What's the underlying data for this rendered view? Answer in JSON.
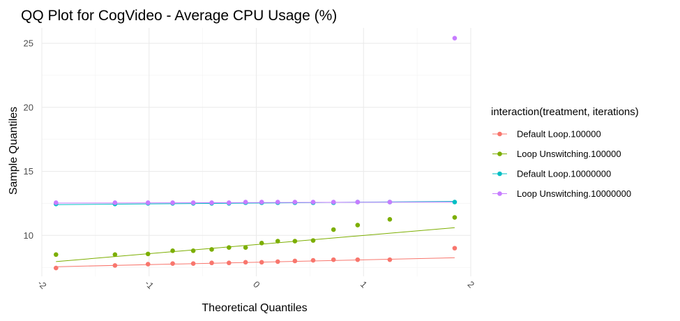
{
  "chart_data": {
    "type": "scatter",
    "title": "QQ Plot for CogVideo - Average CPU Usage (%)",
    "xlabel": "Theoretical Quantiles",
    "ylabel": "Sample Quantiles",
    "xlim": [
      -2.0,
      2.0
    ],
    "ylim": [
      6.8,
      26.2
    ],
    "x_ticks": [
      -2,
      -1,
      0,
      1,
      2
    ],
    "x_tick_labels": [
      "-2",
      "-1",
      "0",
      "1",
      "2"
    ],
    "y_ticks": [
      10,
      15,
      20,
      25
    ],
    "y_tick_labels": [
      "10",
      "15",
      "20",
      "25"
    ],
    "grid": true,
    "legend_position": "right",
    "legend_title": "interaction(treatment, iterations)",
    "series": [
      {
        "name": "Default Loop.100000",
        "color": "#F8766D",
        "x": [
          -1.868,
          -1.318,
          -1.01,
          -0.78,
          -0.588,
          -0.416,
          -0.255,
          -0.1,
          0.05,
          0.2,
          0.36,
          0.53,
          0.72,
          0.945,
          1.245,
          1.85
        ],
        "y": [
          7.45,
          7.65,
          7.75,
          7.8,
          7.8,
          7.85,
          7.85,
          7.9,
          7.9,
          7.95,
          8.0,
          8.05,
          8.1,
          8.1,
          8.1,
          9.0
        ],
        "line": [
          [
            -1.868,
            7.55
          ],
          [
            1.85,
            8.25
          ]
        ]
      },
      {
        "name": "Loop Unswitching.100000",
        "color": "#7CAE00",
        "x": [
          -1.868,
          -1.318,
          -1.01,
          -0.78,
          -0.588,
          -0.416,
          -0.255,
          -0.1,
          0.05,
          0.2,
          0.36,
          0.53,
          0.72,
          0.945,
          1.245,
          1.85
        ],
        "y": [
          8.5,
          8.5,
          8.55,
          8.8,
          8.8,
          8.9,
          9.05,
          9.05,
          9.4,
          9.55,
          9.55,
          9.6,
          10.45,
          10.8,
          11.25,
          11.4
        ],
        "line": [
          [
            -1.868,
            7.95
          ],
          [
            1.85,
            10.6
          ]
        ]
      },
      {
        "name": "Default Loop.10000000",
        "color": "#00BFC4",
        "x": [
          -1.868,
          -1.318,
          -1.01,
          -0.78,
          -0.588,
          -0.416,
          -0.255,
          -0.1,
          0.05,
          0.2,
          0.36,
          0.53,
          0.72,
          0.945,
          1.245,
          1.85
        ],
        "y": [
          12.45,
          12.45,
          12.5,
          12.5,
          12.5,
          12.5,
          12.5,
          12.55,
          12.55,
          12.55,
          12.55,
          12.55,
          12.55,
          12.6,
          12.6,
          12.6
        ],
        "line": [
          [
            -1.868,
            12.4
          ],
          [
            1.85,
            12.65
          ]
        ]
      },
      {
        "name": "Loop Unswitching.10000000",
        "color": "#C77CFF",
        "x": [
          -1.868,
          -1.318,
          -1.01,
          -0.78,
          -0.588,
          -0.416,
          -0.255,
          -0.1,
          0.05,
          0.2,
          0.36,
          0.53,
          0.72,
          0.945,
          1.245,
          1.85
        ],
        "y": [
          12.55,
          12.55,
          12.55,
          12.55,
          12.55,
          12.55,
          12.55,
          12.6,
          12.6,
          12.6,
          12.6,
          12.6,
          12.6,
          12.6,
          12.6,
          25.4
        ],
        "line": [
          [
            -1.868,
            12.52
          ],
          [
            1.85,
            12.6
          ]
        ]
      }
    ]
  }
}
